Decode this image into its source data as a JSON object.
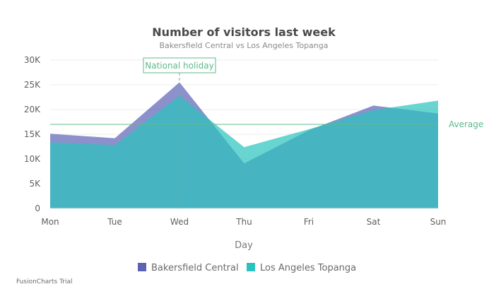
{
  "chart_data": {
    "type": "area",
    "title": "Number of visitors last week",
    "subtitle": "Bakersfield Central vs Los Angeles Topanga",
    "xlabel": "Day",
    "ylabel": "",
    "categories": [
      "Mon",
      "Tue",
      "Wed",
      "Thu",
      "Fri",
      "Sat",
      "Sun"
    ],
    "ylim": [
      0,
      30000
    ],
    "yticks": [
      0,
      5000,
      10000,
      15000,
      20000,
      25000,
      30000
    ],
    "ytick_labels": [
      "0",
      "5K",
      "10K",
      "15K",
      "20K",
      "25K",
      "30K"
    ],
    "grid": true,
    "legend_position": "bottom",
    "series": [
      {
        "name": "Bakersfield Central",
        "color": "#5d62b5",
        "values": [
          15100,
          14200,
          25500,
          9100,
          15800,
          20800,
          19200
        ]
      },
      {
        "name": "Los Angeles Topanga",
        "color": "#29c3be",
        "values": [
          13400,
          12800,
          22800,
          12400,
          16000,
          19900,
          21800
        ]
      }
    ],
    "trendline": {
      "label": "Average",
      "value": 17000,
      "color": "#5fb88d"
    },
    "vline": {
      "label": "National holiday",
      "category": "Wed",
      "color": "#5fb88d"
    }
  },
  "footer": {
    "trial_text": "FusionCharts Trial"
  }
}
